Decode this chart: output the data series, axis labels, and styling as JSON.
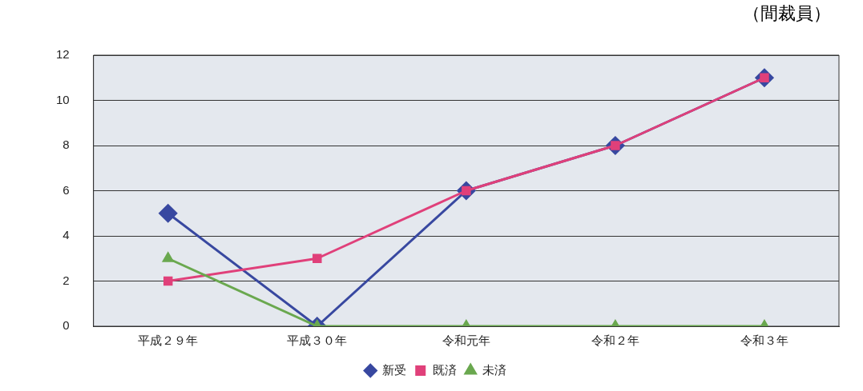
{
  "chart_data": {
    "type": "line",
    "subtitle": "（間裁員）",
    "categories": [
      "平成２９年",
      "平成３０年",
      "令和元年",
      "令和２年",
      "令和３年"
    ],
    "series": [
      {
        "name": "新受",
        "color": "#3848a0",
        "marker": "diamond",
        "values": [
          5,
          0,
          6,
          8,
          11
        ]
      },
      {
        "name": "既済",
        "color": "#e0407a",
        "marker": "square",
        "values": [
          2,
          3,
          6,
          8,
          11
        ]
      },
      {
        "name": "未済",
        "color": "#6aa84f",
        "marker": "triangle",
        "values": [
          3,
          0,
          0,
          0,
          0
        ]
      }
    ],
    "ylim": [
      0,
      12
    ],
    "yticks": [
      0,
      2,
      4,
      6,
      8,
      10,
      12
    ],
    "grid": "y",
    "legend": "bottom",
    "line_style": "solid"
  }
}
